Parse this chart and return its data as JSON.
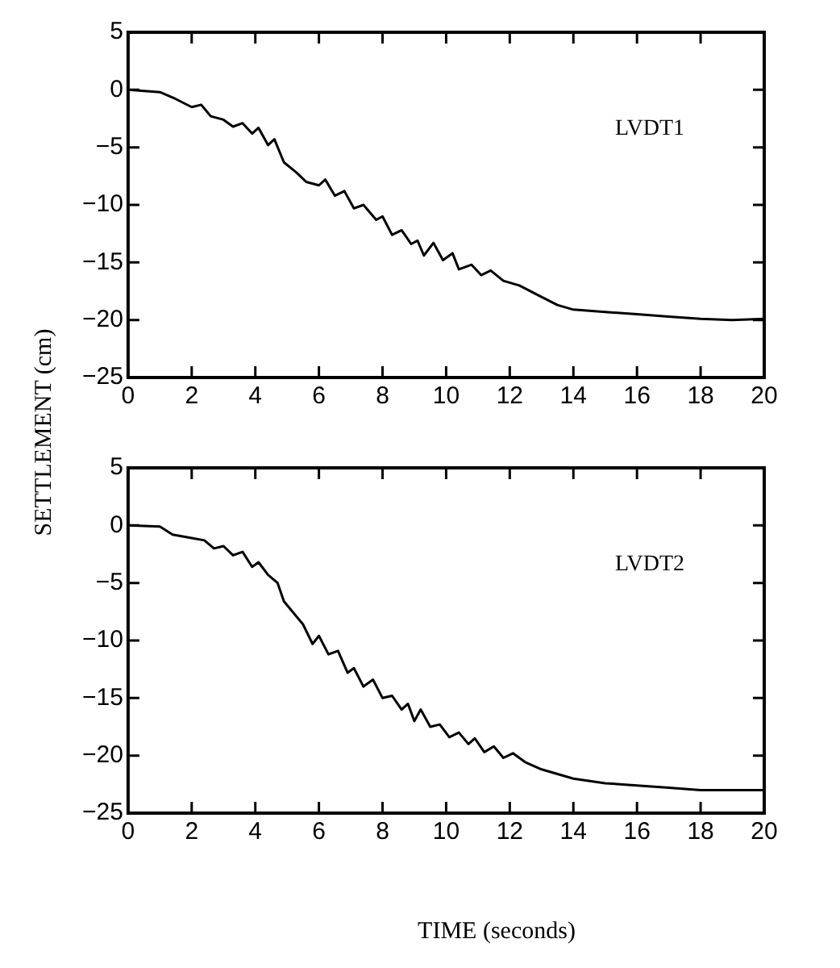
{
  "chart_data": [
    {
      "type": "line",
      "ylabel": "SETTLEMENT (cm)",
      "annotations": [
        "LVDT1"
      ],
      "xlim": [
        0,
        20
      ],
      "xticks": [
        0,
        2,
        4,
        6,
        8,
        10,
        12,
        14,
        16,
        18,
        20
      ],
      "ylim": [
        -25,
        5
      ],
      "yticks": [
        -25,
        -20,
        -15,
        -10,
        -5,
        0,
        5
      ],
      "marker": "none",
      "line_style": "solid",
      "series": [
        {
          "color": "#000000",
          "x": [
            0,
            1,
            1.5,
            2,
            2.3,
            2.6,
            3,
            3.3,
            3.6,
            3.9,
            4.1,
            4.4,
            4.6,
            4.9,
            5.3,
            5.6,
            6,
            6.2,
            6.5,
            6.8,
            7.1,
            7.4,
            7.8,
            8,
            8.3,
            8.6,
            8.9,
            9.1,
            9.3,
            9.6,
            9.9,
            10.2,
            10.4,
            10.8,
            11.1,
            11.4,
            11.8,
            12.3,
            13,
            13.5,
            14,
            15,
            16,
            17,
            18,
            19,
            20
          ],
          "values": [
            0,
            -0.2,
            -0.8,
            -1.5,
            -1.3,
            -2.3,
            -2.6,
            -3.2,
            -2.9,
            -3.8,
            -3.3,
            -4.8,
            -4.3,
            -6.3,
            -7.2,
            -8,
            -8.3,
            -7.8,
            -9.2,
            -8.8,
            -10.3,
            -10,
            -11.3,
            -11,
            -12.6,
            -12.2,
            -13.4,
            -13.1,
            -14.4,
            -13.3,
            -14.8,
            -14.2,
            -15.6,
            -15.2,
            -16.1,
            -15.7,
            -16.6,
            -17,
            -18,
            -18.7,
            -19.1,
            -19.3,
            -19.5,
            -19.7,
            -19.9,
            -20,
            -19.9
          ]
        }
      ]
    },
    {
      "type": "line",
      "xlabel": "TIME (seconds)",
      "annotations": [
        "LVDT2"
      ],
      "xlim": [
        0,
        20
      ],
      "xticks": [
        0,
        2,
        4,
        6,
        8,
        10,
        12,
        14,
        16,
        18,
        20
      ],
      "ylim": [
        -25,
        5
      ],
      "yticks": [
        -25,
        -20,
        -15,
        -10,
        -5,
        0,
        5
      ],
      "marker": "none",
      "line_style": "solid",
      "series": [
        {
          "color": "#000000",
          "x": [
            0,
            1,
            1.4,
            2,
            2.4,
            2.7,
            3,
            3.3,
            3.6,
            3.9,
            4.1,
            4.4,
            4.7,
            4.9,
            5.2,
            5.5,
            5.8,
            6,
            6.3,
            6.6,
            6.9,
            7.1,
            7.4,
            7.7,
            8,
            8.3,
            8.6,
            8.8,
            9,
            9.2,
            9.5,
            9.8,
            10.1,
            10.4,
            10.7,
            10.9,
            11.2,
            11.5,
            11.8,
            12.1,
            12.5,
            13,
            14,
            15,
            16,
            17,
            18,
            19,
            20
          ],
          "values": [
            0,
            -0.1,
            -0.8,
            -1.1,
            -1.3,
            -2,
            -1.8,
            -2.6,
            -2.3,
            -3.6,
            -3.2,
            -4.3,
            -5,
            -6.6,
            -7.6,
            -8.6,
            -10.3,
            -9.6,
            -11.2,
            -10.9,
            -12.8,
            -12.4,
            -14,
            -13.4,
            -15,
            -14.8,
            -16,
            -15.5,
            -17,
            -16,
            -17.5,
            -17.3,
            -18.4,
            -18,
            -19,
            -18.5,
            -19.7,
            -19.2,
            -20.2,
            -19.8,
            -20.6,
            -21.2,
            -22,
            -22.4,
            -22.6,
            -22.8,
            -23,
            -23,
            -23
          ]
        }
      ]
    }
  ]
}
